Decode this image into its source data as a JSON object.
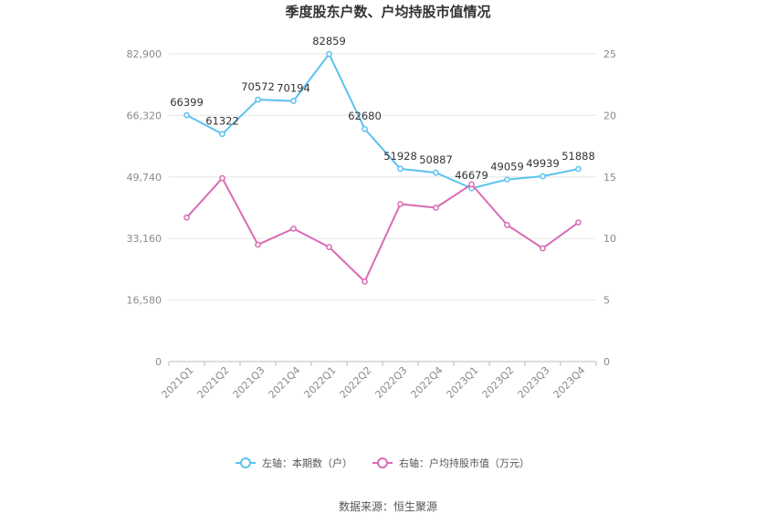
{
  "chart_data": {
    "type": "line",
    "title": "季度股东户数、户均持股市值情况",
    "categories": [
      "2021Q1",
      "2021Q2",
      "2021Q3",
      "2021Q4",
      "2022Q1",
      "2022Q2",
      "2022Q3",
      "2022Q4",
      "2023Q1",
      "2023Q2",
      "2023Q3",
      "2023Q4"
    ],
    "series": [
      {
        "name": "左轴：本期数（户）",
        "axis": "left",
        "color": "#5bc2f0",
        "values": [
          66399,
          61322,
          70572,
          70194,
          82859,
          62680,
          51928,
          50887,
          46679,
          49059,
          49939,
          51888
        ],
        "labels": [
          "66399",
          "61322",
          "70572",
          "70194",
          "82859",
          "62680",
          "51928",
          "50887",
          "46679",
          "49059",
          "49939",
          "51888"
        ]
      },
      {
        "name": "右轴：户均持股市值（万元）",
        "axis": "right",
        "color": "#d96bb4",
        "values": [
          11.7,
          14.9,
          9.5,
          10.8,
          9.3,
          6.5,
          12.8,
          12.5,
          14.4,
          11.1,
          9.2,
          11.3
        ]
      }
    ],
    "y_left": {
      "min": 0,
      "max": 82900,
      "ticks": [
        "0",
        "16,580",
        "33,160",
        "49,740",
        "66,320",
        "82,900"
      ]
    },
    "y_right": {
      "min": 0,
      "max": 25,
      "ticks": [
        "0",
        "5",
        "10",
        "15",
        "20",
        "25"
      ]
    },
    "grid": true,
    "legend_position": "bottom"
  },
  "source": "数据来源：恒生聚源"
}
